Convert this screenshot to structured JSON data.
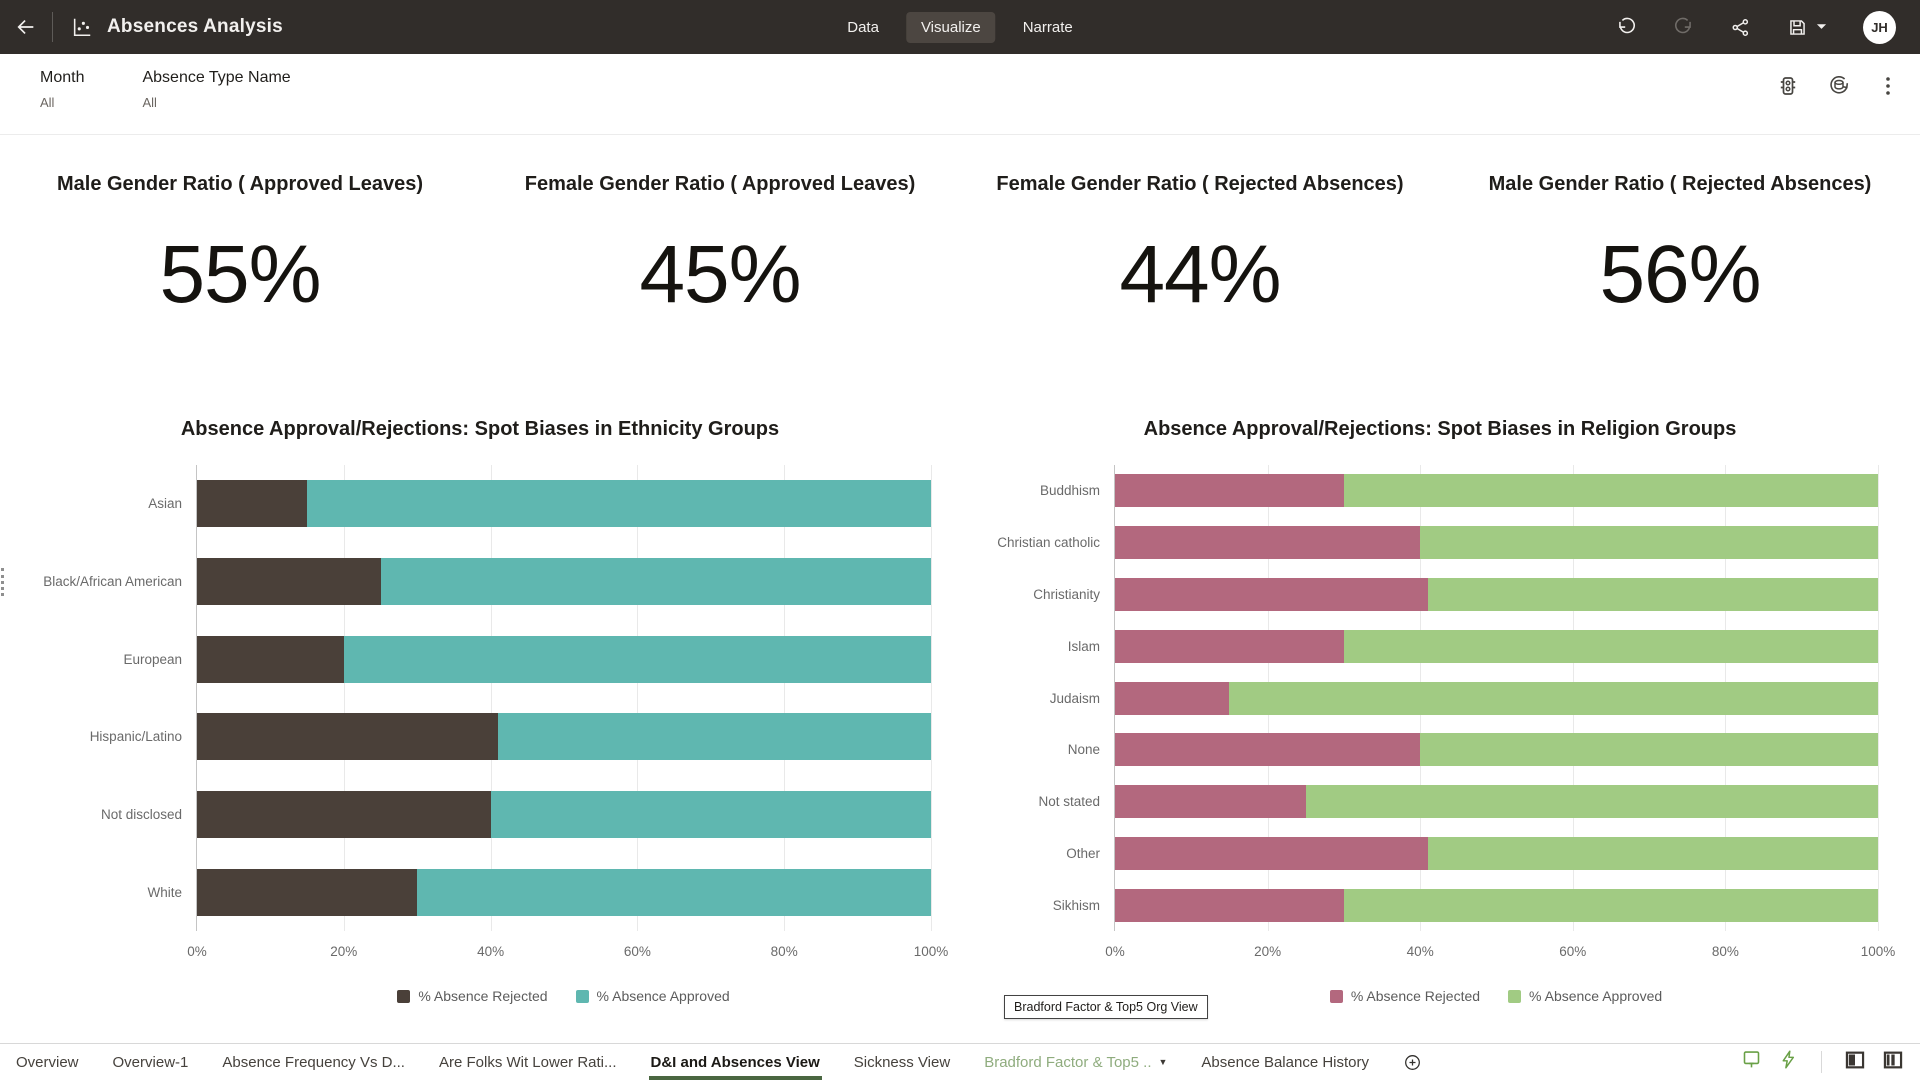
{
  "topbar": {
    "title": "Absences Analysis",
    "tabs": [
      {
        "label": "Data",
        "active": false
      },
      {
        "label": "Visualize",
        "active": true
      },
      {
        "label": "Narrate",
        "active": false
      }
    ],
    "avatar_initials": "JH"
  },
  "filters": [
    {
      "name": "Month",
      "value": "All"
    },
    {
      "name": "Absence Type Name",
      "value": "All"
    }
  ],
  "kpis": [
    {
      "title": "Male Gender Ratio ( Approved Leaves)",
      "value": "55%"
    },
    {
      "title": "Female Gender Ratio ( Approved Leaves)",
      "value": "45%"
    },
    {
      "title": "Female Gender Ratio ( Rejected Absences)",
      "value": "44%"
    },
    {
      "title": "Male Gender Ratio ( Rejected Absences)",
      "value": "56%"
    }
  ],
  "chart_data": [
    {
      "type": "bar",
      "orientation": "horizontal",
      "stacked": true,
      "title": "Absence Approval/Rejections: Spot Biases in Ethnicity Groups",
      "categories": [
        "Asian",
        "Black/African American",
        "European",
        "Hispanic/Latino",
        "Not disclosed",
        "White"
      ],
      "series": [
        {
          "name": "% Absence Rejected",
          "color": "#4A4039",
          "values": [
            15,
            25,
            20,
            41,
            40,
            30
          ]
        },
        {
          "name": "% Absence Approved",
          "color": "#5FB7B0",
          "values": [
            85,
            75,
            80,
            59,
            60,
            70
          ]
        }
      ],
      "x_ticks": [
        "0%",
        "20%",
        "40%",
        "60%",
        "80%",
        "100%"
      ],
      "xlim": [
        0,
        100
      ],
      "grid": true,
      "legend_position": "bottom"
    },
    {
      "type": "bar",
      "orientation": "horizontal",
      "stacked": true,
      "title": "Absence Approval/Rejections: Spot Biases in Religion Groups",
      "categories": [
        "Buddhism",
        "Christian catholic",
        "Christianity",
        "Islam",
        "Judaism",
        "None",
        "Not stated",
        "Other",
        "Sikhism"
      ],
      "series": [
        {
          "name": "% Absence Rejected",
          "color": "#B3687E",
          "values": [
            30,
            40,
            41,
            30,
            15,
            40,
            25,
            41,
            30
          ]
        },
        {
          "name": "% Absence Approved",
          "color": "#A1CB83",
          "values": [
            70,
            60,
            59,
            70,
            85,
            60,
            75,
            59,
            70
          ]
        }
      ],
      "x_ticks": [
        "0%",
        "20%",
        "40%",
        "60%",
        "80%",
        "100%"
      ],
      "xlim": [
        0,
        100
      ],
      "grid": true,
      "legend_position": "bottom"
    }
  ],
  "tooltip": {
    "text": "Bradford Factor & Top5 Org View"
  },
  "bottom_tabs": [
    {
      "label": "Overview"
    },
    {
      "label": "Overview-1"
    },
    {
      "label": "Absence Frequency Vs D..."
    },
    {
      "label": "Are Folks Wit Lower Rati..."
    },
    {
      "label": "D&I and Absences View",
      "active": true
    },
    {
      "label": "Sickness View"
    },
    {
      "label": "Bradford Factor & Top5 ..",
      "colored": true,
      "caret": true
    },
    {
      "label": "Absence Balance History"
    }
  ],
  "colors": {
    "topbar_bg": "#312D2A",
    "active_top_tab_bg": "#4C4641",
    "rejected_ethnicity": "#4A4039",
    "approved_ethnicity": "#5FB7B0",
    "rejected_religion": "#B3687E",
    "approved_religion": "#A1CB83",
    "active_tab_underline": "#4A6741",
    "colored_tab_text": "#8FAC7E",
    "green_action_icons": "#69A046"
  }
}
